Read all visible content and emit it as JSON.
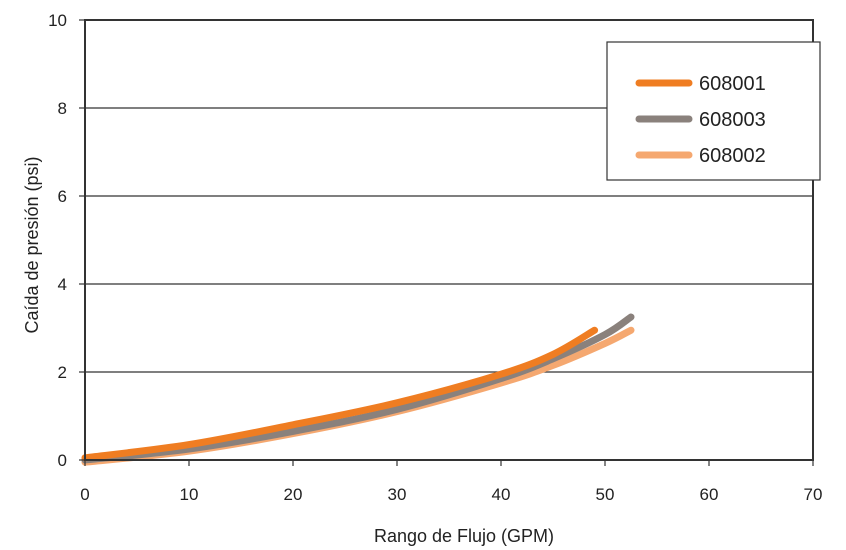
{
  "chart_data": {
    "type": "line",
    "title": "",
    "xlabel": "Rango de Flujo (GPM)",
    "ylabel": "Caída de presión (psi)",
    "xlim": [
      0,
      70
    ],
    "ylim": [
      0,
      10
    ],
    "xticks": [
      "0",
      "10",
      "20",
      "30",
      "40",
      "50",
      "60",
      "70"
    ],
    "yticks": [
      "0",
      "2",
      "4",
      "6",
      "8",
      "10"
    ],
    "grid": "horizontal",
    "legend_position": "top-right",
    "series": [
      {
        "name": "608001",
        "color": "#ef7d22",
        "x": [
          0,
          10,
          20,
          30,
          40,
          45,
          49
        ],
        "y": [
          0.05,
          0.35,
          0.8,
          1.3,
          1.95,
          2.4,
          2.95
        ]
      },
      {
        "name": "608003",
        "color": "#8a817c",
        "x": [
          0,
          10,
          20,
          30,
          40,
          45,
          50,
          52.5
        ],
        "y": [
          0,
          0.25,
          0.65,
          1.15,
          1.85,
          2.3,
          2.85,
          3.25
        ]
      },
      {
        "name": "608002",
        "color": "#f5a870",
        "x": [
          0,
          10,
          20,
          30,
          40,
          45,
          50,
          52.5
        ],
        "y": [
          -0.05,
          0.2,
          0.6,
          1.1,
          1.75,
          2.15,
          2.65,
          2.95
        ]
      }
    ]
  }
}
